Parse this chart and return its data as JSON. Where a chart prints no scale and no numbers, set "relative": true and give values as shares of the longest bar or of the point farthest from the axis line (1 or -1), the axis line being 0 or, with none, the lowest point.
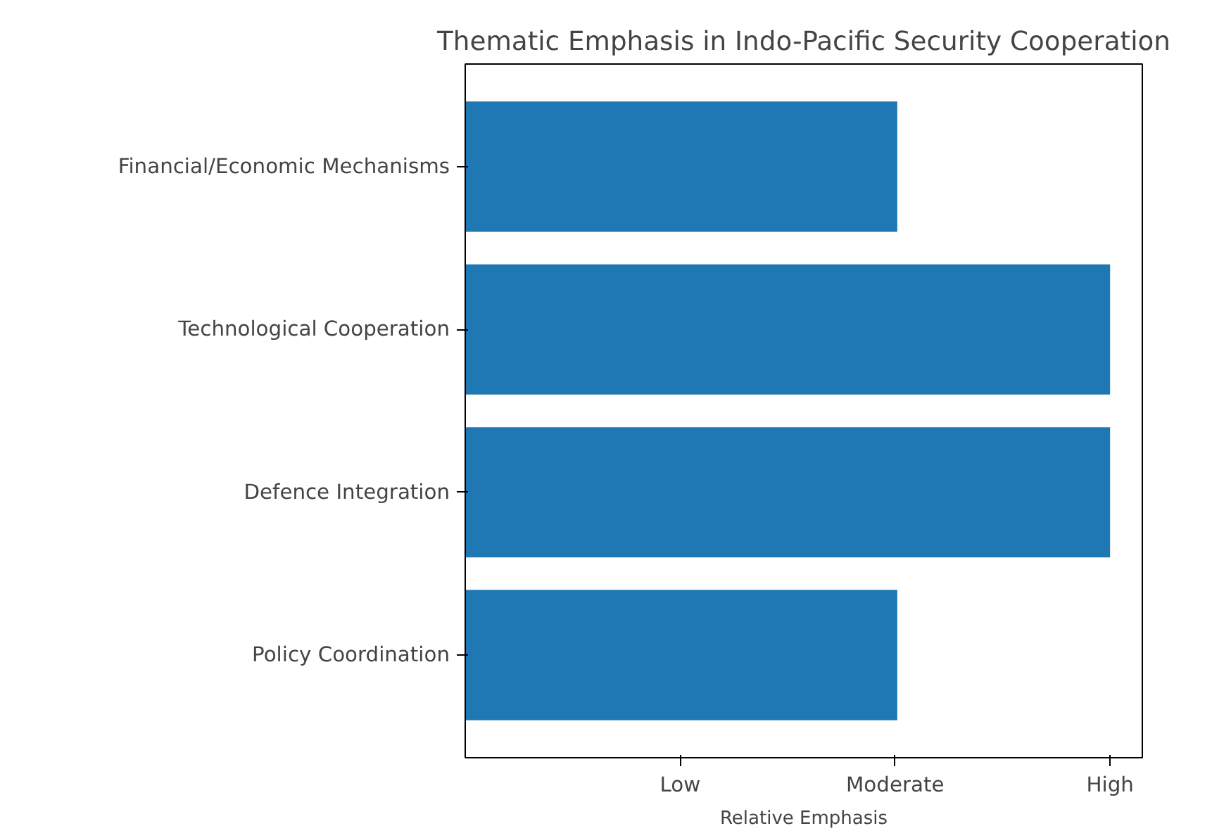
{
  "chart_data": {
    "type": "bar",
    "orientation": "horizontal",
    "relative": true,
    "title": "Thematic Emphasis in Indo-Pacific Security Cooperation",
    "xlabel": "Relative Emphasis",
    "categories": [
      "Financial/Economic Mechanisms",
      "Technological Cooperation",
      "Defence Integration",
      "Policy Coordination"
    ],
    "values": [
      0.67,
      1,
      1,
      0.67
    ],
    "color": "#1f77b4",
    "annotations": [
      "Low",
      "Moderate",
      "High"
    ],
    "grid": false
  }
}
